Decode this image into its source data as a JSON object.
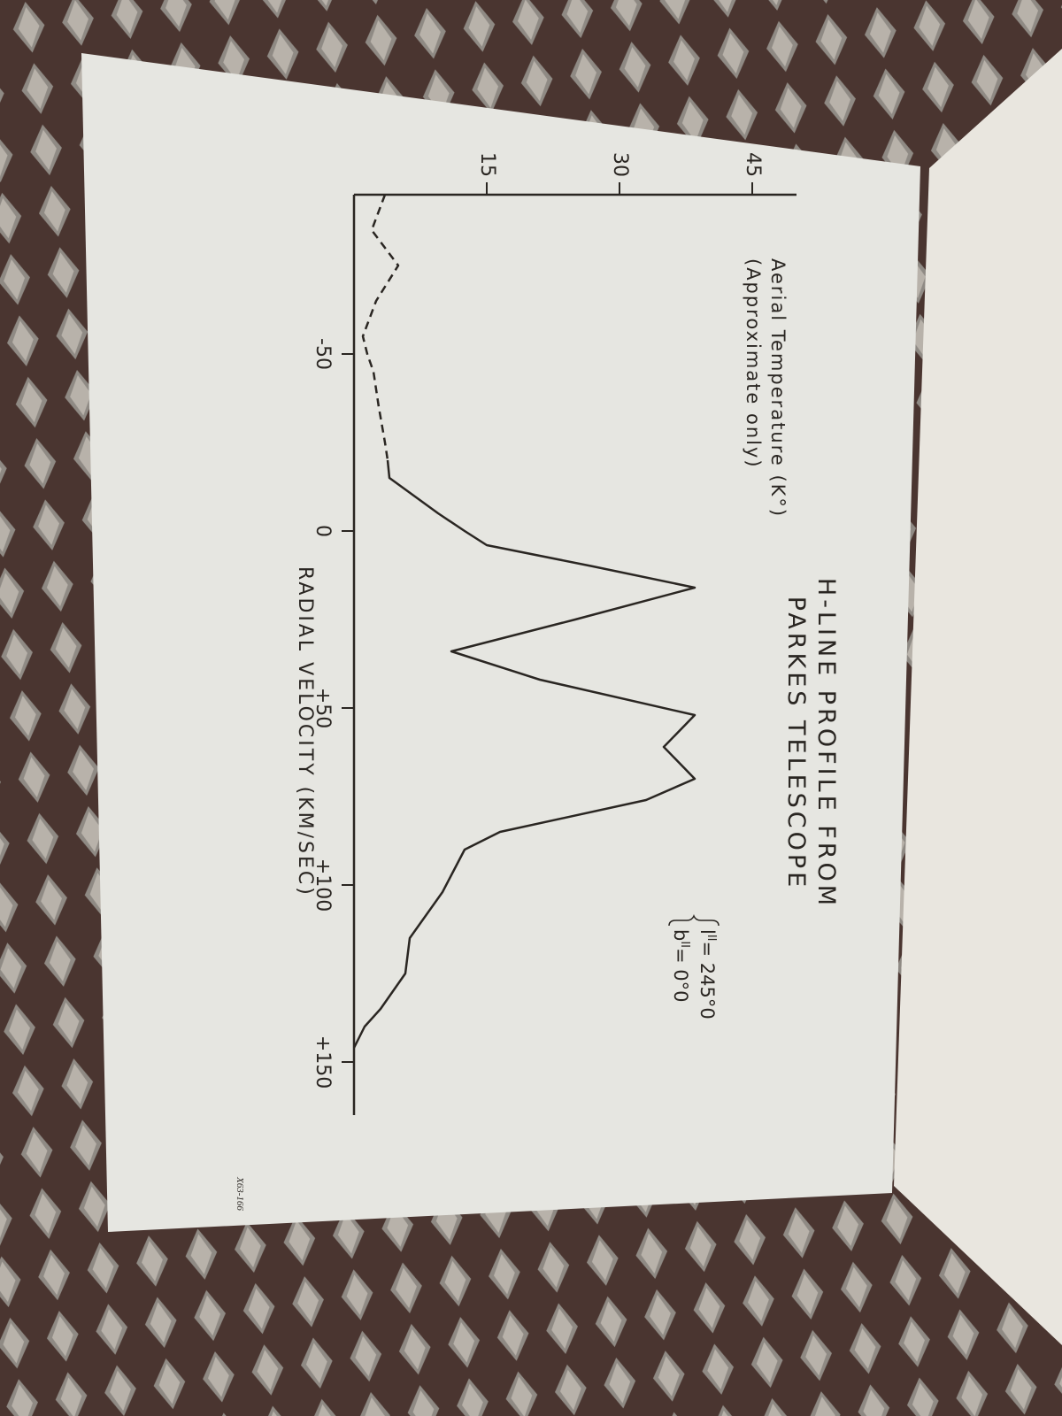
{
  "chart_data": {
    "type": "line",
    "title": [
      "H-LINE PROFILE FROM",
      "PARKES TELESCOPE"
    ],
    "y_label": [
      "Aerial Temperature (K°)",
      "(Approximate only)"
    ],
    "x_label": "RADIAL VELOCITY (KM/SEC)",
    "annotations": [
      {
        "symbol": "l",
        "sup": "II",
        "text": "= 245°0"
      },
      {
        "symbol": "b",
        "sup": "II",
        "text": "=    0°0"
      }
    ],
    "x": [
      -95,
      -85,
      -75,
      -65,
      -55,
      -50,
      -45,
      -35,
      -25,
      -20,
      -15,
      -5,
      0,
      4,
      10,
      16,
      25,
      34,
      42,
      52,
      61,
      70,
      76,
      85,
      90,
      102,
      115,
      125,
      135,
      140,
      146
    ],
    "series": [
      {
        "color": "#2a2622",
        "style": "dashed",
        "values": [
          3.5,
          2,
          5,
          2.5,
          1,
          1.5,
          2.2,
          2.8,
          3.5,
          3.8,
          null,
          null,
          null,
          null,
          null,
          null,
          null,
          null,
          null,
          null,
          null,
          null,
          null,
          null,
          null,
          null,
          null,
          null,
          null,
          null,
          null
        ]
      },
      {
        "color": "#2a2622",
        "style": "solid",
        "values": [
          null,
          null,
          null,
          null,
          null,
          null,
          null,
          null,
          null,
          3.8,
          4,
          9.5,
          12.5,
          15,
          27,
          38.5,
          25,
          11,
          21,
          38.5,
          35,
          38.5,
          33,
          16.5,
          12.5,
          10,
          6.3,
          5.8,
          3,
          1.2,
          0
        ]
      }
    ],
    "xlim": [
      -95,
      165
    ],
    "ylim": [
      0,
      50
    ],
    "xticks": [
      {
        "value": -50,
        "label": "-50"
      },
      0,
      {
        "value": 50,
        "label": "+50"
      },
      {
        "value": 100,
        "label": "+100"
      },
      {
        "value": 150,
        "label": "+150"
      }
    ],
    "yticks": [
      15,
      30,
      45
    ]
  },
  "document": {
    "code": "X63-166"
  }
}
